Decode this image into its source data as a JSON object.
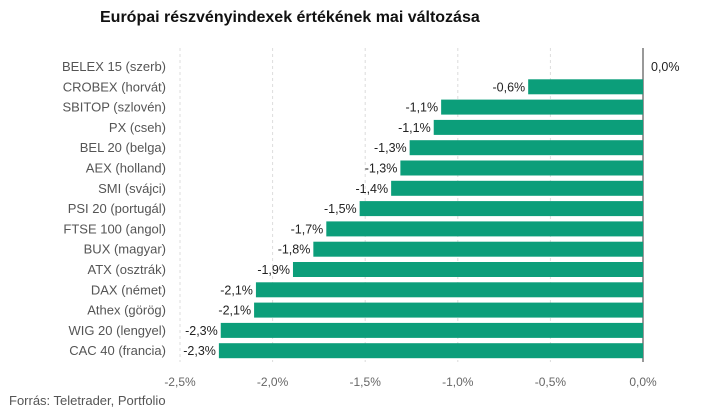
{
  "chart_data": {
    "type": "bar",
    "orientation": "horizontal",
    "title": "Európai részvényindexek értékének mai változása",
    "source": "Forrás: Teletrader, Portfolio",
    "categories": [
      "BELEX 15 (szerb)",
      "CROBEX (horvát)",
      "SBITOP (szlovén)",
      "PX (cseh)",
      "BEL 20 (belga)",
      "AEX (holland)",
      "SMI (svájci)",
      "PSI 20 (portugál)",
      "FTSE 100 (angol)",
      "BUX (magyar)",
      "ATX (osztrák)",
      "DAX (német)",
      "Athex (görög)",
      "WIG 20 (lengyel)",
      "CAC 40 (francia)"
    ],
    "values": [
      0.0,
      -0.62,
      -1.09,
      -1.13,
      -1.26,
      -1.31,
      -1.36,
      -1.53,
      -1.71,
      -1.78,
      -1.89,
      -2.09,
      -2.1,
      -2.28,
      -2.29
    ],
    "value_labels": [
      "0,0%",
      "-0,6%",
      "-1,1%",
      "-1,1%",
      "-1,3%",
      "-1,3%",
      "-1,4%",
      "-1,5%",
      "-1,7%",
      "-1,8%",
      "-1,9%",
      "-2,1%",
      "-2,1%",
      "-2,3%",
      "-2,3%"
    ],
    "xlim": [
      -2.5,
      0.0
    ],
    "xticks": [
      -2.5,
      -2.0,
      -1.5,
      -1.0,
      -0.5,
      0.0
    ],
    "xtick_labels": [
      "-2,5%",
      "-2,0%",
      "-1,5%",
      "-1,0%",
      "-0,5%",
      "0,0%"
    ],
    "grid": true,
    "bar_color": "#0c9e7a",
    "grid_color": "#dcdcdc"
  }
}
